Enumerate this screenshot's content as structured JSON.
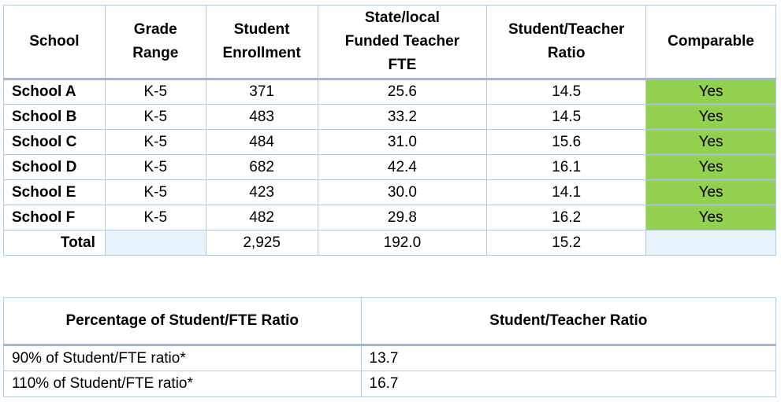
{
  "comparability_table": {
    "headers": {
      "school": "School",
      "grade_range_line1": "Grade",
      "grade_range_line2": "Range",
      "enrollment_line1": "Student",
      "enrollment_line2": "Enrollment",
      "fte_line1": "State/local",
      "fte_line2": "Funded Teacher",
      "fte_line3": "FTE",
      "ratio_line1": "Student/Teacher",
      "ratio_line2": "Ratio",
      "comparable": "Comparable"
    },
    "rows": [
      {
        "school": "School A",
        "grade": "K-5",
        "enrollment": "371",
        "fte": "25.6",
        "ratio": "14.5",
        "comparable": "Yes"
      },
      {
        "school": "School B",
        "grade": "K-5",
        "enrollment": "483",
        "fte": "33.2",
        "ratio": "14.5",
        "comparable": "Yes"
      },
      {
        "school": "School C",
        "grade": "K-5",
        "enrollment": "484",
        "fte": "31.0",
        "ratio": "15.6",
        "comparable": "Yes"
      },
      {
        "school": "School D",
        "grade": "K-5",
        "enrollment": "682",
        "fte": "42.4",
        "ratio": "16.1",
        "comparable": "Yes"
      },
      {
        "school": "School E",
        "grade": "K-5",
        "enrollment": "423",
        "fte": "30.0",
        "ratio": "14.1",
        "comparable": "Yes"
      },
      {
        "school": "School F",
        "grade": "K-5",
        "enrollment": "482",
        "fte": "29.8",
        "ratio": "16.2",
        "comparable": "Yes"
      }
    ],
    "total": {
      "label": "Total",
      "enrollment": "2,925",
      "fte": "192.0",
      "ratio": "15.2"
    },
    "colors": {
      "comparable_fill": "#92d050",
      "empty_fill": "#e8f2fb",
      "border": "#b4cbe1"
    }
  },
  "ratio_table": {
    "headers": {
      "percentage": "Percentage of Student/FTE Ratio",
      "ratio": "Student/Teacher Ratio"
    },
    "rows": [
      {
        "label": "90% of Student/FTE ratio*",
        "value": "13.7"
      },
      {
        "label": "110% of Student/FTE ratio*",
        "value": "16.7"
      }
    ]
  }
}
